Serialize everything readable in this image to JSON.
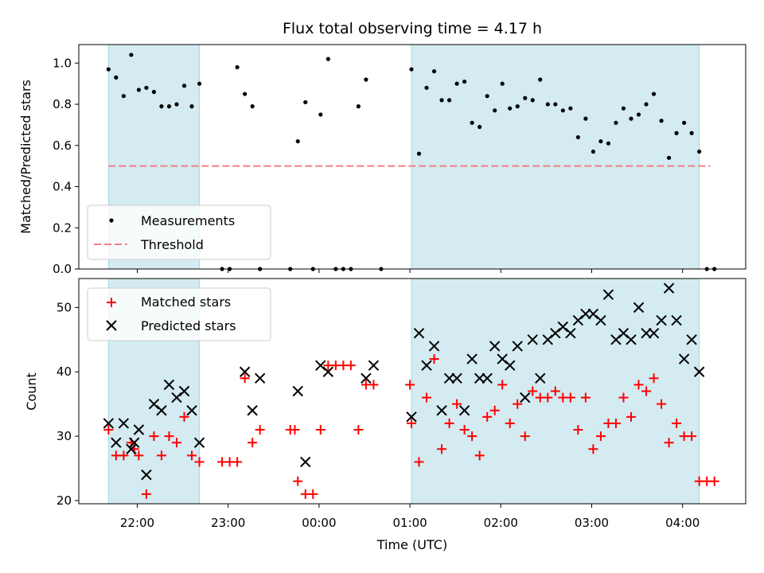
{
  "chart_data": [
    {
      "type": "scatter",
      "title": "Flux total observing time = 4.17 h",
      "xlabel": "",
      "ylabel": "Matched/Predicted stars",
      "ylim": [
        0,
        1.09
      ],
      "yticks": [
        "0.0",
        "0.2",
        "0.4",
        "0.6",
        "0.8",
        "1.0"
      ],
      "ytick_values": [
        0,
        0.2,
        0.4,
        0.6,
        0.8,
        1.0
      ],
      "threshold": 0.5,
      "threshold_color": "#f08080",
      "marker_color": "#000000",
      "shaded_intervals": [
        [
          "21:41",
          "22:41"
        ],
        [
          "01:01",
          "04:11"
        ]
      ],
      "shade_color": "#d3ebf1",
      "legend": {
        "placement": "lower-left",
        "entries": [
          "Measurements",
          "Threshold"
        ]
      },
      "series": [
        {
          "name": "Measurements",
          "x": [
            "21:41",
            "21:46",
            "21:51",
            "21:56",
            "22:01",
            "22:06",
            "22:11",
            "22:16",
            "22:21",
            "22:26",
            "22:31",
            "22:36",
            "22:41",
            "22:56",
            "23:01",
            "23:06",
            "23:11",
            "23:16",
            "23:21",
            "23:41",
            "23:46",
            "23:51",
            "23:56",
            "00:01",
            "00:06",
            "00:11",
            "00:16",
            "00:21",
            "00:26",
            "00:31",
            "00:41",
            "01:01",
            "01:06",
            "01:11",
            "01:16",
            "01:21",
            "01:26",
            "01:31",
            "01:36",
            "01:41",
            "01:46",
            "01:51",
            "01:56",
            "02:01",
            "02:06",
            "02:11",
            "02:16",
            "02:21",
            "02:26",
            "02:31",
            "02:36",
            "02:41",
            "02:46",
            "02:51",
            "02:56",
            "03:01",
            "03:06",
            "03:11",
            "03:16",
            "03:21",
            "03:26",
            "03:31",
            "03:36",
            "03:41",
            "03:46",
            "03:51",
            "03:56",
            "04:01",
            "04:06",
            "04:11",
            "04:16",
            "04:21"
          ],
          "y": [
            0.97,
            0.93,
            0.84,
            1.04,
            0.87,
            0.88,
            0.86,
            0.79,
            0.79,
            0.8,
            0.89,
            0.79,
            0.9,
            0,
            0,
            0.98,
            0.85,
            0.79,
            0,
            0,
            0.62,
            0.81,
            0,
            0.75,
            1.02,
            0,
            0,
            0,
            0.79,
            0.92,
            0,
            0.97,
            0.56,
            0.88,
            0.96,
            0.82,
            0.82,
            0.9,
            0.91,
            0.71,
            0.69,
            0.84,
            0.77,
            0.9,
            0.78,
            0.79,
            0.83,
            0.82,
            0.92,
            0.8,
            0.8,
            0.77,
            0.78,
            0.64,
            0.73,
            0.57,
            0.62,
            0.61,
            0.71,
            0.78,
            0.73,
            0.75,
            0.8,
            0.85,
            0.72,
            0.54,
            0.66,
            0.71,
            0.66,
            0.57,
            0,
            0
          ]
        }
      ]
    },
    {
      "type": "scatter",
      "title": "",
      "xlabel": "Time (UTC)",
      "ylabel": "Count",
      "ylim": [
        19.5,
        54.5
      ],
      "yticks": [
        "20",
        "30",
        "40",
        "50"
      ],
      "ytick_values": [
        20,
        30,
        40,
        50
      ],
      "xticks": [
        "22:00",
        "23:00",
        "00:00",
        "01:00",
        "02:00",
        "03:00",
        "04:00"
      ],
      "shaded_intervals": [
        [
          "21:41",
          "22:41"
        ],
        [
          "01:01",
          "04:11"
        ]
      ],
      "shade_color": "#d3ebf1",
      "legend": {
        "placement": "upper-left",
        "entries": [
          "Matched stars",
          "Predicted stars"
        ]
      },
      "series": [
        {
          "name": "Matched stars",
          "color": "#ff0000",
          "marker": "+",
          "x": [
            "21:41",
            "21:46",
            "21:51",
            "21:56",
            "21:58",
            "22:01",
            "22:06",
            "22:11",
            "22:16",
            "22:21",
            "22:26",
            "22:31",
            "22:36",
            "22:41",
            "22:56",
            "23:01",
            "23:06",
            "23:11",
            "23:16",
            "23:21",
            "23:41",
            "23:44",
            "23:46",
            "23:51",
            "23:56",
            "00:01",
            "00:06",
            "00:11",
            "00:16",
            "00:21",
            "00:26",
            "00:31",
            "00:36",
            "01:00",
            "01:01",
            "01:06",
            "01:11",
            "01:16",
            "01:21",
            "01:26",
            "01:31",
            "01:36",
            "01:41",
            "01:46",
            "01:51",
            "01:56",
            "02:01",
            "02:06",
            "02:11",
            "02:16",
            "02:21",
            "02:26",
            "02:31",
            "02:36",
            "02:41",
            "02:46",
            "02:51",
            "02:56",
            "03:01",
            "03:06",
            "03:11",
            "03:16",
            "03:21",
            "03:26",
            "03:31",
            "03:36",
            "03:41",
            "03:46",
            "03:51",
            "03:56",
            "04:01",
            "04:06",
            "04:11",
            "04:16",
            "04:21"
          ],
          "y": [
            31,
            27,
            27,
            29,
            28,
            27,
            21,
            30,
            27,
            30,
            29,
            33,
            27,
            26,
            26,
            26,
            26,
            39,
            29,
            31,
            31,
            31,
            23,
            21,
            21,
            31,
            41,
            41,
            41,
            41,
            31,
            38,
            38,
            38,
            32,
            26,
            36,
            42,
            28,
            32,
            35,
            31,
            30,
            27,
            33,
            34,
            38,
            32,
            35,
            30,
            37,
            36,
            36,
            37,
            36,
            36,
            31,
            36,
            28,
            30,
            32,
            32,
            36,
            33,
            38,
            37,
            39,
            35,
            29,
            32,
            30,
            30,
            23,
            23,
            23
          ]
        },
        {
          "name": "Predicted stars",
          "color": "#000000",
          "marker": "x",
          "x": [
            "21:41",
            "21:46",
            "21:51",
            "21:56",
            "21:58",
            "22:01",
            "22:06",
            "22:11",
            "22:16",
            "22:21",
            "22:26",
            "22:31",
            "22:36",
            "22:41",
            "23:11",
            "23:16",
            "23:21",
            "23:46",
            "23:51",
            "00:01",
            "00:06",
            "00:31",
            "00:36",
            "01:01",
            "01:06",
            "01:11",
            "01:16",
            "01:21",
            "01:26",
            "01:31",
            "01:36",
            "01:41",
            "01:46",
            "01:51",
            "01:56",
            "02:01",
            "02:06",
            "02:11",
            "02:16",
            "02:21",
            "02:26",
            "02:31",
            "02:36",
            "02:41",
            "02:46",
            "02:51",
            "02:56",
            "03:01",
            "03:06",
            "03:11",
            "03:16",
            "03:21",
            "03:26",
            "03:31",
            "03:36",
            "03:41",
            "03:46",
            "03:51",
            "03:56",
            "04:01",
            "04:06",
            "04:11"
          ],
          "y": [
            32,
            29,
            32,
            28,
            29,
            31,
            24,
            35,
            34,
            38,
            36,
            37,
            34,
            29,
            40,
            34,
            39,
            37,
            26,
            41,
            40,
            39,
            41,
            33,
            46,
            41,
            44,
            34,
            39,
            39,
            34,
            42,
            39,
            39,
            44,
            42,
            41,
            44,
            36,
            45,
            39,
            45,
            46,
            47,
            46,
            48,
            49,
            49,
            48,
            52,
            45,
            46,
            45,
            50,
            46,
            46,
            48,
            53,
            48,
            42,
            45,
            40
          ]
        }
      ]
    }
  ]
}
